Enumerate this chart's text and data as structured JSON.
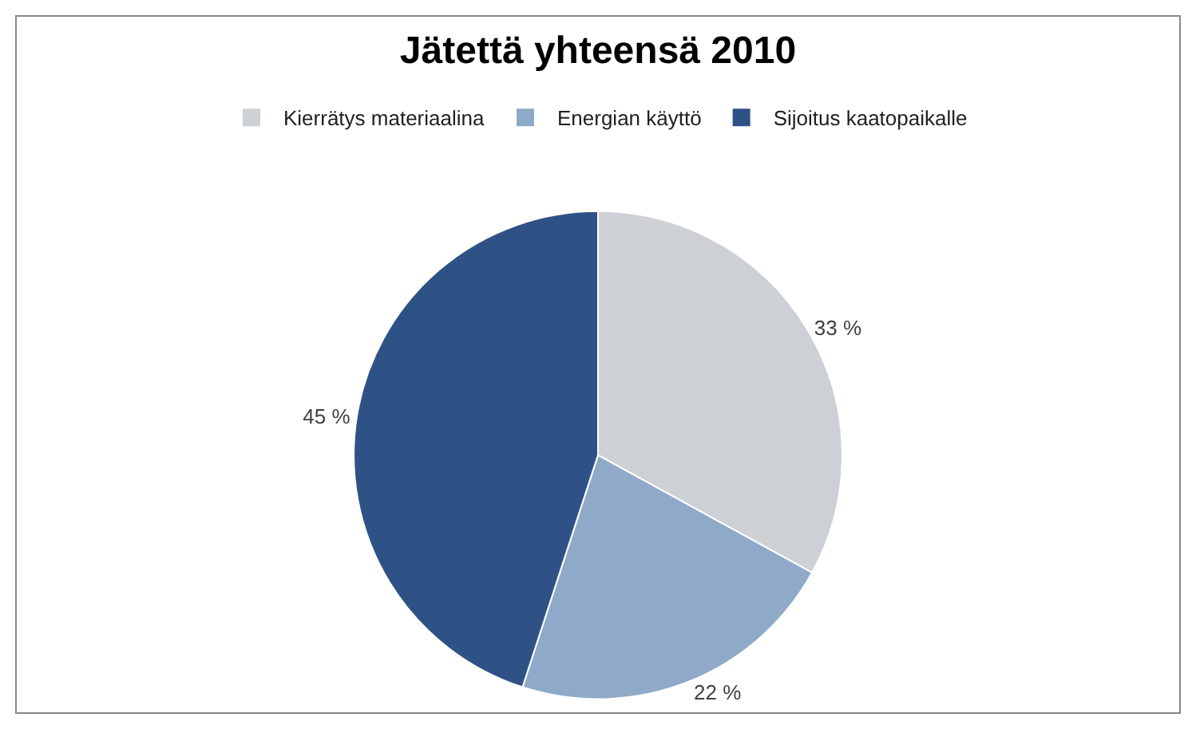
{
  "chart_data": {
    "type": "pie",
    "title": "Jätettä yhteensä 2010",
    "categories": [
      "Kierrätys materiaalina",
      "Energian käyttö",
      "Sijoitus kaatopaikalle"
    ],
    "values": [
      33,
      22,
      45
    ],
    "colors": [
      "#cdd1d6",
      "#8fa9c9",
      "#2f5286"
    ],
    "value_labels": [
      "33 %",
      "22 %",
      "45 %"
    ],
    "legend": "top"
  }
}
